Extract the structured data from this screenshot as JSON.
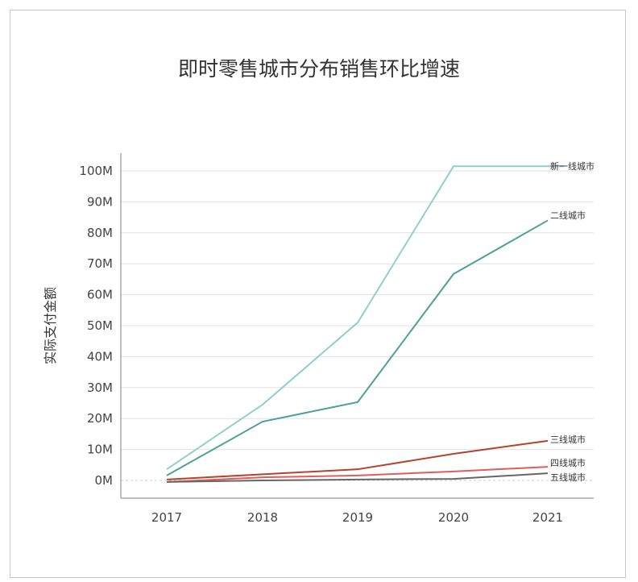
{
  "chart_data": {
    "type": "line",
    "title": "即时零售城市分布销售环比增速",
    "xlabel": "",
    "ylabel": "实际支付金额",
    "x": [
      "2017",
      "2018",
      "2019",
      "2020",
      "2021"
    ],
    "ylim": [
      0,
      100
    ],
    "yticks": [
      0,
      10,
      20,
      30,
      40,
      50,
      60,
      70,
      80,
      90,
      100
    ],
    "ytick_labels": [
      "0M",
      "10M",
      "20M",
      "30M",
      "40M",
      "50M",
      "60M",
      "70M",
      "80M",
      "90M",
      "100M"
    ],
    "grid": true,
    "legend": "inline-right",
    "series": [
      {
        "name": "新一线城市",
        "color": "#8fcfcf",
        "values": [
          3.6,
          24.5,
          51,
          101.5,
          101.5
        ]
      },
      {
        "name": "二线城市",
        "color": "#4e9f9c",
        "values": [
          1.6,
          19,
          25.3,
          66.7,
          84
        ]
      },
      {
        "name": "三线城市",
        "color": "#b4432d",
        "values": [
          0.3,
          2,
          3.6,
          8.6,
          12.8
        ]
      },
      {
        "name": "四线城市",
        "color": "#e35c5c",
        "values": [
          -0.5,
          1,
          1.6,
          2.9,
          4.4
        ]
      },
      {
        "name": "五线城市",
        "color": "#666666",
        "values": [
          -0.5,
          0,
          0.3,
          0.5,
          2.3
        ]
      }
    ]
  }
}
